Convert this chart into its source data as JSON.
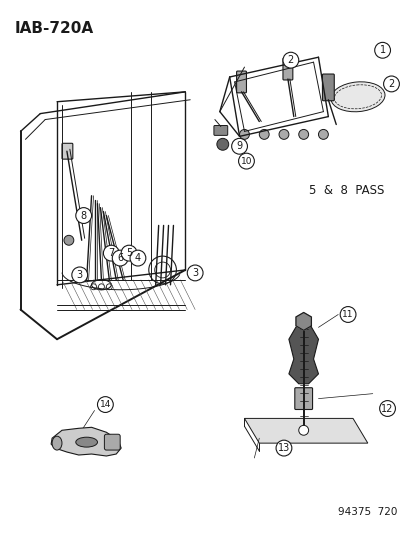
{
  "title_text": "IAB-720A",
  "label_5_8_pass": "5  &  8  PASS",
  "footer_text": "94375  720",
  "bg_color": "#ffffff",
  "line_color": "#1a1a1a",
  "title_fontsize": 11,
  "label_fontsize": 8.5,
  "footer_fontsize": 7.5,
  "fig_width": 4.14,
  "fig_height": 5.33,
  "dpi": 100
}
